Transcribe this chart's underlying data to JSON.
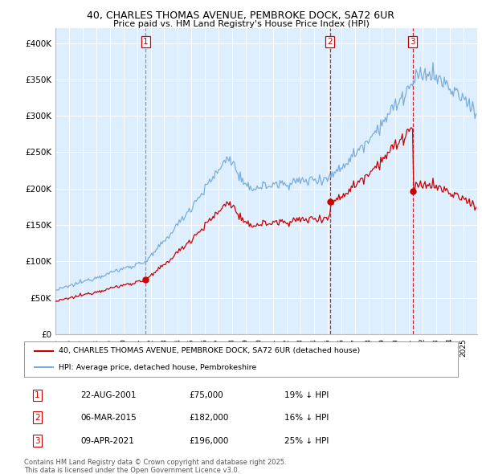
{
  "title_line1": "40, CHARLES THOMAS AVENUE, PEMBROKE DOCK, SA72 6UR",
  "title_line2": "Price paid vs. HM Land Registry's House Price Index (HPI)",
  "ylim": [
    0,
    420000
  ],
  "yticks": [
    0,
    50000,
    100000,
    150000,
    200000,
    250000,
    300000,
    350000,
    400000
  ],
  "ytick_labels": [
    "£0",
    "£50K",
    "£100K",
    "£150K",
    "£200K",
    "£250K",
    "£300K",
    "£350K",
    "£400K"
  ],
  "line1_color": "#cc0000",
  "line2_color": "#7aaddc",
  "vline_color_1": "#888888",
  "vline_color_23": "#cc0000",
  "plot_bg_color": "#ddeeff",
  "sale_dates_t": [
    2001.64,
    2015.17,
    2021.27
  ],
  "sale_prices": [
    75000,
    182000,
    196000
  ],
  "sale_labels": [
    "1",
    "2",
    "3"
  ],
  "legend_label1": "40, CHARLES THOMAS AVENUE, PEMBROKE DOCK, SA72 6UR (detached house)",
  "legend_label2": "HPI: Average price, detached house, Pembrokeshire",
  "table_data": [
    [
      "1",
      "22-AUG-2001",
      "£75,000",
      "19% ↓ HPI"
    ],
    [
      "2",
      "06-MAR-2015",
      "£182,000",
      "16% ↓ HPI"
    ],
    [
      "3",
      "09-APR-2021",
      "£196,000",
      "25% ↓ HPI"
    ]
  ],
  "footer": "Contains HM Land Registry data © Crown copyright and database right 2025.\nThis data is licensed under the Open Government Licence v3.0.",
  "background_color": "#ffffff",
  "grid_color": "#ffffff"
}
